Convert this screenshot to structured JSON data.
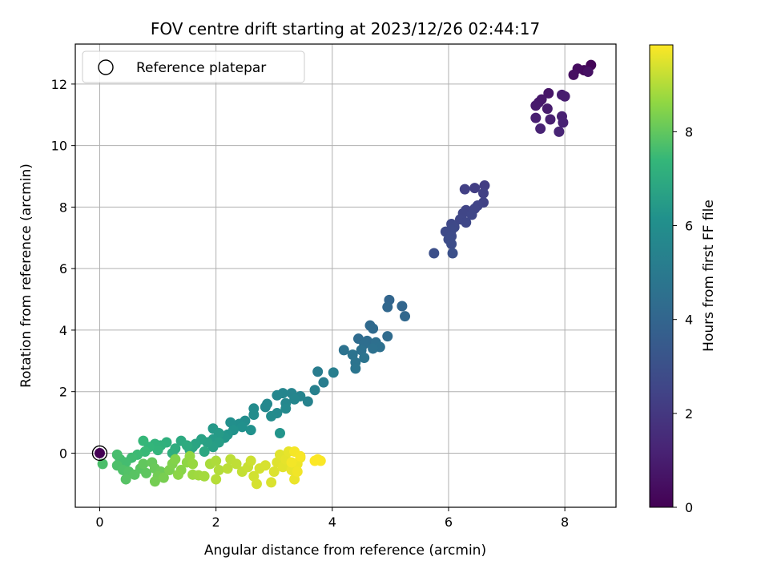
{
  "chart_data": {
    "type": "scatter",
    "title": "FOV centre drift starting at 2023/12/26 02:44:17",
    "xlabel": "Angular distance from reference (arcmin)",
    "ylabel": "Rotation from reference (arcmin)",
    "xlim": [
      -0.42,
      8.88
    ],
    "ylim": [
      -1.76,
      13.3
    ],
    "xticks": [
      0,
      2,
      4,
      6,
      8
    ],
    "yticks": [
      0,
      2,
      4,
      6,
      8,
      10,
      12
    ],
    "grid": true,
    "legend": {
      "position": "top-left",
      "entries": [
        "Reference platepar"
      ]
    },
    "colorbar": {
      "label": "Hours from first FF file",
      "range": [
        0,
        9.85
      ],
      "ticks": [
        0,
        2,
        4,
        6,
        8
      ],
      "colormap": "viridis"
    },
    "reference_point": {
      "x": 0,
      "y": 0,
      "t": 0
    },
    "points": [
      {
        "x": 8.45,
        "y": 12.62,
        "t": 0.15
      },
      {
        "x": 8.33,
        "y": 12.45,
        "t": 0.3
      },
      {
        "x": 8.22,
        "y": 12.5,
        "t": 0.4
      },
      {
        "x": 8.15,
        "y": 12.3,
        "t": 0.5
      },
      {
        "x": 8.4,
        "y": 12.4,
        "t": 0.55
      },
      {
        "x": 7.72,
        "y": 11.7,
        "t": 0.7
      },
      {
        "x": 7.6,
        "y": 11.5,
        "t": 0.8
      },
      {
        "x": 7.55,
        "y": 11.4,
        "t": 0.85
      },
      {
        "x": 7.5,
        "y": 11.3,
        "t": 0.9
      },
      {
        "x": 7.7,
        "y": 11.2,
        "t": 0.95
      },
      {
        "x": 7.95,
        "y": 11.65,
        "t": 1.0
      },
      {
        "x": 8.0,
        "y": 11.6,
        "t": 1.02
      },
      {
        "x": 7.5,
        "y": 10.9,
        "t": 1.05
      },
      {
        "x": 7.75,
        "y": 10.85,
        "t": 1.1
      },
      {
        "x": 7.95,
        "y": 10.95,
        "t": 1.12
      },
      {
        "x": 7.97,
        "y": 10.75,
        "t": 1.15
      },
      {
        "x": 7.58,
        "y": 10.55,
        "t": 1.2
      },
      {
        "x": 7.9,
        "y": 10.45,
        "t": 1.25
      },
      {
        "x": 6.62,
        "y": 8.7,
        "t": 2.2
      },
      {
        "x": 6.45,
        "y": 8.62,
        "t": 2.25
      },
      {
        "x": 6.28,
        "y": 8.58,
        "t": 2.3
      },
      {
        "x": 6.6,
        "y": 8.45,
        "t": 2.35
      },
      {
        "x": 6.6,
        "y": 8.15,
        "t": 2.4
      },
      {
        "x": 6.5,
        "y": 8.05,
        "t": 2.45
      },
      {
        "x": 6.45,
        "y": 7.95,
        "t": 2.5
      },
      {
        "x": 6.3,
        "y": 7.9,
        "t": 2.5
      },
      {
        "x": 6.25,
        "y": 7.8,
        "t": 2.55
      },
      {
        "x": 6.4,
        "y": 7.75,
        "t": 2.6
      },
      {
        "x": 6.2,
        "y": 7.6,
        "t": 2.6
      },
      {
        "x": 6.3,
        "y": 7.5,
        "t": 2.62
      },
      {
        "x": 6.05,
        "y": 7.45,
        "t": 2.65
      },
      {
        "x": 6.1,
        "y": 7.35,
        "t": 2.7
      },
      {
        "x": 6.05,
        "y": 7.25,
        "t": 2.72
      },
      {
        "x": 5.95,
        "y": 7.2,
        "t": 2.75
      },
      {
        "x": 6.05,
        "y": 7.05,
        "t": 2.8
      },
      {
        "x": 6.0,
        "y": 6.95,
        "t": 2.85
      },
      {
        "x": 6.05,
        "y": 6.8,
        "t": 2.88
      },
      {
        "x": 5.75,
        "y": 6.5,
        "t": 2.95
      },
      {
        "x": 6.07,
        "y": 6.5,
        "t": 3.0
      },
      {
        "x": 4.98,
        "y": 4.98,
        "t": 4.0
      },
      {
        "x": 5.2,
        "y": 4.78,
        "t": 4.05
      },
      {
        "x": 4.95,
        "y": 4.75,
        "t": 4.1
      },
      {
        "x": 5.25,
        "y": 4.45,
        "t": 4.15
      },
      {
        "x": 4.65,
        "y": 4.15,
        "t": 4.2
      },
      {
        "x": 4.7,
        "y": 4.05,
        "t": 4.25
      },
      {
        "x": 4.95,
        "y": 3.8,
        "t": 4.3
      },
      {
        "x": 4.45,
        "y": 3.72,
        "t": 4.35
      },
      {
        "x": 4.6,
        "y": 3.65,
        "t": 4.4
      },
      {
        "x": 4.55,
        "y": 3.55,
        "t": 4.45
      },
      {
        "x": 4.75,
        "y": 3.6,
        "t": 4.5
      },
      {
        "x": 4.82,
        "y": 3.45,
        "t": 4.55
      },
      {
        "x": 4.7,
        "y": 3.4,
        "t": 4.58
      },
      {
        "x": 4.5,
        "y": 3.35,
        "t": 4.6
      },
      {
        "x": 4.2,
        "y": 3.35,
        "t": 4.65
      },
      {
        "x": 4.35,
        "y": 3.2,
        "t": 4.7
      },
      {
        "x": 4.55,
        "y": 3.1,
        "t": 4.72
      },
      {
        "x": 4.4,
        "y": 2.95,
        "t": 4.75
      },
      {
        "x": 4.4,
        "y": 2.75,
        "t": 4.8
      },
      {
        "x": 3.75,
        "y": 2.65,
        "t": 5.1
      },
      {
        "x": 3.85,
        "y": 2.3,
        "t": 5.15
      },
      {
        "x": 4.02,
        "y": 2.62,
        "t": 5.2
      },
      {
        "x": 3.7,
        "y": 2.05,
        "t": 5.3
      },
      {
        "x": 3.58,
        "y": 1.68,
        "t": 5.4
      },
      {
        "x": 3.45,
        "y": 1.85,
        "t": 5.45
      },
      {
        "x": 3.3,
        "y": 1.95,
        "t": 5.5
      },
      {
        "x": 3.15,
        "y": 1.95,
        "t": 5.55
      },
      {
        "x": 3.05,
        "y": 1.88,
        "t": 5.6
      },
      {
        "x": 3.35,
        "y": 1.75,
        "t": 5.62
      },
      {
        "x": 3.2,
        "y": 1.62,
        "t": 5.65
      },
      {
        "x": 2.88,
        "y": 1.6,
        "t": 5.7
      },
      {
        "x": 2.85,
        "y": 1.5,
        "t": 5.72
      },
      {
        "x": 3.2,
        "y": 1.45,
        "t": 5.75
      },
      {
        "x": 3.05,
        "y": 1.3,
        "t": 5.8
      },
      {
        "x": 2.65,
        "y": 1.45,
        "t": 5.85
      },
      {
        "x": 2.65,
        "y": 1.25,
        "t": 5.9
      },
      {
        "x": 2.95,
        "y": 1.2,
        "t": 5.92
      },
      {
        "x": 2.5,
        "y": 1.05,
        "t": 5.95
      },
      {
        "x": 2.4,
        "y": 0.95,
        "t": 6.0
      },
      {
        "x": 2.25,
        "y": 1.0,
        "t": 6.05
      },
      {
        "x": 2.45,
        "y": 0.85,
        "t": 6.1
      },
      {
        "x": 2.6,
        "y": 0.75,
        "t": 6.15
      },
      {
        "x": 2.3,
        "y": 0.75,
        "t": 6.2
      },
      {
        "x": 3.1,
        "y": 0.65,
        "t": 6.25
      },
      {
        "x": 2.2,
        "y": 0.6,
        "t": 6.3
      },
      {
        "x": 2.15,
        "y": 0.5,
        "t": 6.35
      },
      {
        "x": 1.95,
        "y": 0.8,
        "t": 6.4
      },
      {
        "x": 2.05,
        "y": 0.65,
        "t": 6.45
      },
      {
        "x": 1.95,
        "y": 0.45,
        "t": 6.5
      },
      {
        "x": 2.05,
        "y": 0.35,
        "t": 6.55
      },
      {
        "x": 1.95,
        "y": 0.2,
        "t": 6.6
      },
      {
        "x": 1.85,
        "y": 0.35,
        "t": 6.65
      },
      {
        "x": 1.75,
        "y": 0.45,
        "t": 6.7
      },
      {
        "x": 1.65,
        "y": 0.3,
        "t": 6.75
      },
      {
        "x": 1.6,
        "y": 0.2,
        "t": 6.8
      },
      {
        "x": 1.55,
        "y": 0.1,
        "t": 6.85
      },
      {
        "x": 1.8,
        "y": 0.05,
        "t": 6.9
      },
      {
        "x": 1.4,
        "y": 0.4,
        "t": 6.95
      },
      {
        "x": 1.5,
        "y": 0.25,
        "t": 7.0
      },
      {
        "x": 1.3,
        "y": 0.15,
        "t": 7.05
      },
      {
        "x": 1.25,
        "y": 0.0,
        "t": 7.1
      },
      {
        "x": 1.15,
        "y": 0.35,
        "t": 7.15
      },
      {
        "x": 1.05,
        "y": 0.25,
        "t": 7.2
      },
      {
        "x": 0.95,
        "y": 0.3,
        "t": 7.25
      },
      {
        "x": 1.0,
        "y": 0.1,
        "t": 7.3
      },
      {
        "x": 0.85,
        "y": 0.2,
        "t": 7.35
      },
      {
        "x": 0.75,
        "y": 0.4,
        "t": 7.4
      },
      {
        "x": 0.78,
        "y": 0.05,
        "t": 7.45
      },
      {
        "x": 0.65,
        "y": -0.05,
        "t": 7.5
      },
      {
        "x": 0.55,
        "y": -0.15,
        "t": 7.55
      },
      {
        "x": 0.45,
        "y": -0.3,
        "t": 7.6
      },
      {
        "x": 0.35,
        "y": -0.2,
        "t": 7.62
      },
      {
        "x": 0.3,
        "y": -0.05,
        "t": 7.65
      },
      {
        "x": 0.05,
        "y": -0.35,
        "t": 7.7
      },
      {
        "x": 0.3,
        "y": -0.4,
        "t": 7.72
      },
      {
        "x": 0.4,
        "y": -0.55,
        "t": 7.75
      },
      {
        "x": 0.5,
        "y": -0.6,
        "t": 7.8
      },
      {
        "x": 0.45,
        "y": -0.85,
        "t": 7.85
      },
      {
        "x": 0.6,
        "y": -0.7,
        "t": 7.88
      },
      {
        "x": 0.7,
        "y": -0.5,
        "t": 7.9
      },
      {
        "x": 0.8,
        "y": -0.65,
        "t": 7.95
      },
      {
        "x": 0.75,
        "y": -0.35,
        "t": 8.0
      },
      {
        "x": 0.9,
        "y": -0.3,
        "t": 8.05
      },
      {
        "x": 0.95,
        "y": -0.5,
        "t": 8.1
      },
      {
        "x": 1.05,
        "y": -0.6,
        "t": 8.15
      },
      {
        "x": 1.0,
        "y": -0.75,
        "t": 8.2
      },
      {
        "x": 0.95,
        "y": -0.92,
        "t": 8.25
      },
      {
        "x": 1.1,
        "y": -0.8,
        "t": 8.3
      },
      {
        "x": 1.2,
        "y": -0.55,
        "t": 8.35
      },
      {
        "x": 1.25,
        "y": -0.35,
        "t": 8.4
      },
      {
        "x": 1.3,
        "y": -0.2,
        "t": 8.45
      },
      {
        "x": 1.4,
        "y": -0.55,
        "t": 8.5
      },
      {
        "x": 1.35,
        "y": -0.7,
        "t": 8.55
      },
      {
        "x": 1.5,
        "y": -0.3,
        "t": 8.6
      },
      {
        "x": 1.55,
        "y": -0.1,
        "t": 8.65
      },
      {
        "x": 1.6,
        "y": -0.35,
        "t": 8.7
      },
      {
        "x": 1.6,
        "y": -0.7,
        "t": 8.75
      },
      {
        "x": 1.7,
        "y": -0.72,
        "t": 8.8
      },
      {
        "x": 1.8,
        "y": -0.75,
        "t": 8.85
      },
      {
        "x": 1.9,
        "y": -0.35,
        "t": 8.9
      },
      {
        "x": 2.0,
        "y": -0.25,
        "t": 8.95
      },
      {
        "x": 2.05,
        "y": -0.55,
        "t": 9.0
      },
      {
        "x": 2.0,
        "y": -0.85,
        "t": 9.05
      },
      {
        "x": 2.2,
        "y": -0.5,
        "t": 9.1
      },
      {
        "x": 2.25,
        "y": -0.2,
        "t": 9.12
      },
      {
        "x": 2.35,
        "y": -0.35,
        "t": 9.15
      },
      {
        "x": 2.45,
        "y": -0.6,
        "t": 9.2
      },
      {
        "x": 2.55,
        "y": -0.45,
        "t": 9.25
      },
      {
        "x": 2.6,
        "y": -0.25,
        "t": 9.3
      },
      {
        "x": 2.65,
        "y": -0.75,
        "t": 9.35
      },
      {
        "x": 2.75,
        "y": -0.5,
        "t": 9.38
      },
      {
        "x": 2.7,
        "y": -1.0,
        "t": 9.4
      },
      {
        "x": 2.85,
        "y": -0.4,
        "t": 9.42
      },
      {
        "x": 2.95,
        "y": -0.95,
        "t": 9.45
      },
      {
        "x": 3.0,
        "y": -0.6,
        "t": 9.48
      },
      {
        "x": 3.05,
        "y": -0.3,
        "t": 9.5
      },
      {
        "x": 3.1,
        "y": -0.05,
        "t": 9.52
      },
      {
        "x": 3.15,
        "y": -0.45,
        "t": 9.55
      },
      {
        "x": 3.2,
        "y": -0.2,
        "t": 9.58
      },
      {
        "x": 3.25,
        "y": 0.05,
        "t": 9.6
      },
      {
        "x": 3.3,
        "y": -0.55,
        "t": 9.62
      },
      {
        "x": 3.35,
        "y": -0.85,
        "t": 9.65
      },
      {
        "x": 3.4,
        "y": -0.35,
        "t": 9.68
      },
      {
        "x": 3.45,
        "y": -0.15,
        "t": 9.7
      },
      {
        "x": 3.4,
        "y": -0.6,
        "t": 9.72
      },
      {
        "x": 3.3,
        "y": -0.3,
        "t": 9.74
      },
      {
        "x": 3.35,
        "y": 0.05,
        "t": 9.76
      },
      {
        "x": 3.45,
        "y": -0.1,
        "t": 9.78
      },
      {
        "x": 3.75,
        "y": -0.2,
        "t": 9.8
      },
      {
        "x": 3.8,
        "y": -0.25,
        "t": 9.82
      },
      {
        "x": 3.7,
        "y": -0.25,
        "t": 9.84
      }
    ]
  }
}
